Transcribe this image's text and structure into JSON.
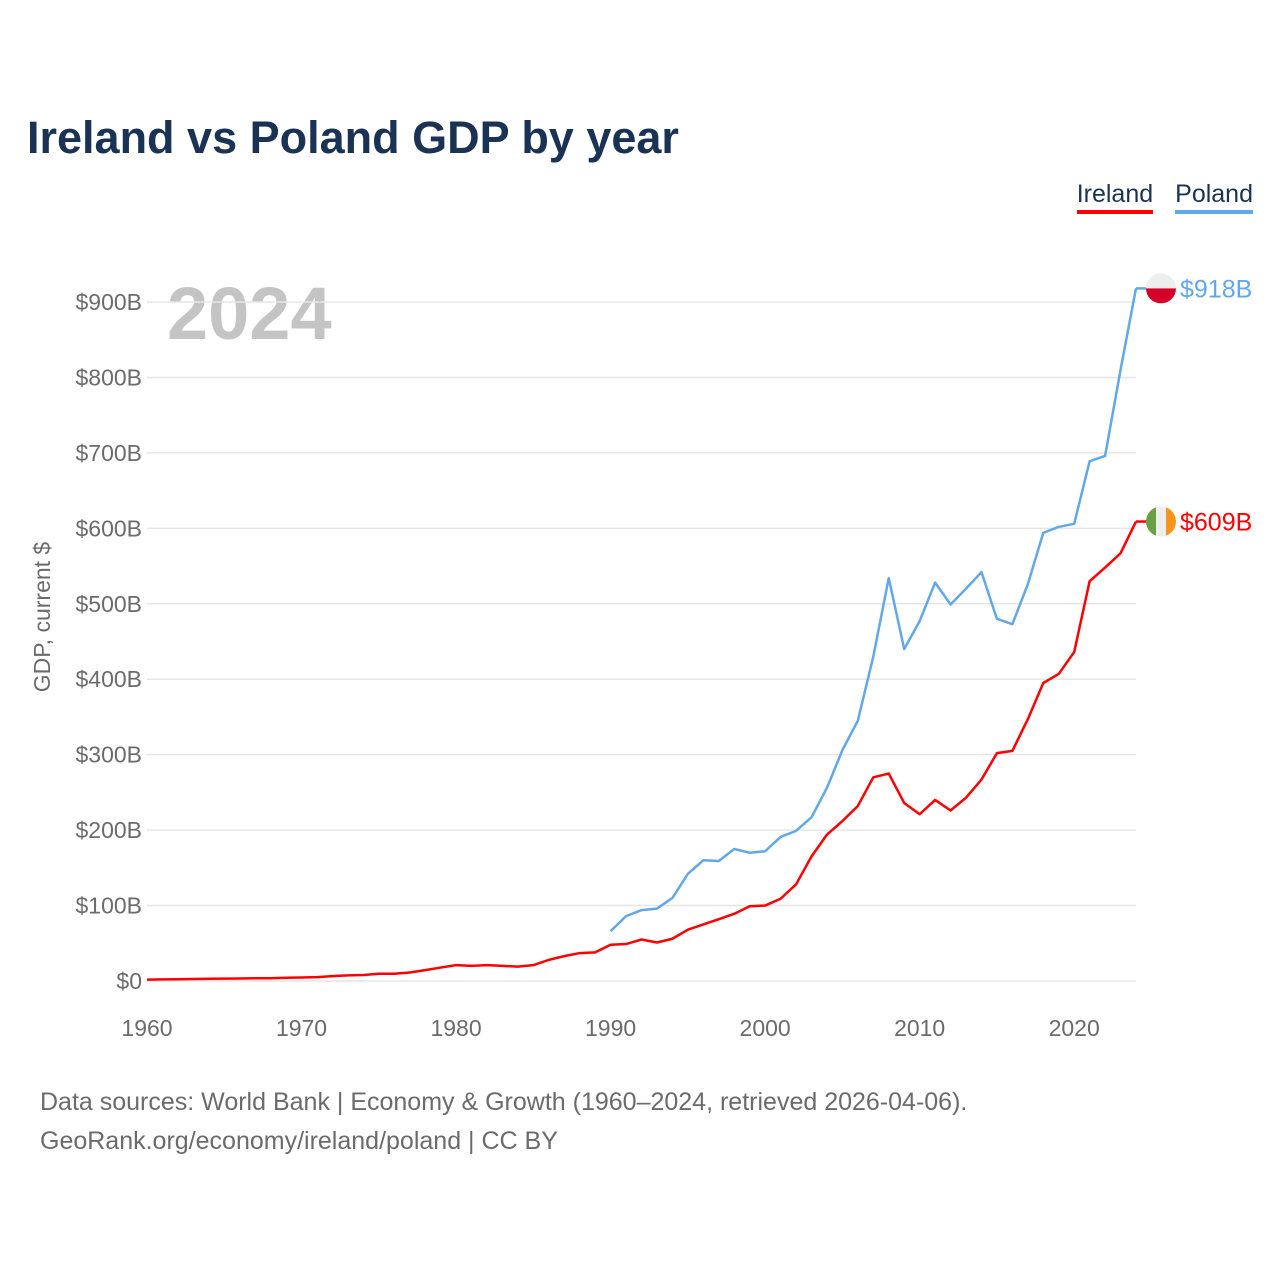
{
  "title": "Ireland vs Poland GDP by year",
  "year_watermark": "2024",
  "footer": {
    "line1": "Data sources: World Bank | Economy & Growth (1960–2024, retrieved 2026-04-06).",
    "line2": "GeoRank.org/economy/ireland/poland | CC BY"
  },
  "chart_data": {
    "type": "line",
    "title": "Ireland vs Poland GDP by year",
    "xlabel": "",
    "ylabel": "GDP, current $",
    "xlim": [
      1960,
      2024
    ],
    "ylim": [
      0,
      900
    ],
    "xticks": [
      1960,
      1970,
      1980,
      1990,
      2000,
      2010,
      2020
    ],
    "yticks": [
      0,
      100,
      200,
      300,
      400,
      500,
      600,
      700,
      800,
      900
    ],
    "ytick_labels": [
      "$0",
      "$100B",
      "$200B",
      "$300B",
      "$400B",
      "$500B",
      "$600B",
      "$700B",
      "$800B",
      "$900B"
    ],
    "grid": true,
    "legend_position": "top-right",
    "units": "billions USD",
    "series": [
      {
        "name": "Ireland",
        "color": "#ff0000",
        "end_label": "$609B",
        "flag": "ireland-flag",
        "x_start": 1960,
        "values": [
          1.9,
          2.1,
          2.3,
          2.6,
          2.9,
          3.1,
          3.3,
          3.6,
          3.6,
          4.3,
          4.6,
          5.2,
          6.4,
          7.5,
          8.0,
          9.6,
          9.6,
          11.3,
          14.4,
          17.8,
          21,
          20,
          21,
          20,
          19,
          21,
          28,
          33,
          37,
          38,
          48,
          49,
          55,
          51,
          56,
          68,
          75,
          82,
          89,
          99,
          100,
          109,
          128,
          165,
          194,
          212,
          232,
          270,
          275,
          236,
          221,
          240,
          226,
          243,
          267,
          302,
          305,
          347,
          395,
          407,
          436,
          530,
          548,
          567,
          609
        ]
      },
      {
        "name": "Poland",
        "color": "#62a8e8",
        "end_label": "$918B",
        "flag": "poland-flag",
        "x_start": 1990,
        "values": [
          66,
          86,
          94,
          96,
          110,
          142,
          160,
          159,
          175,
          170,
          172,
          191,
          199,
          217,
          256,
          306,
          345,
          430,
          534,
          440,
          477,
          528,
          499,
          520,
          542,
          480,
          473,
          526,
          594,
          602,
          606,
          689,
          696,
          810,
          918
        ]
      }
    ]
  }
}
